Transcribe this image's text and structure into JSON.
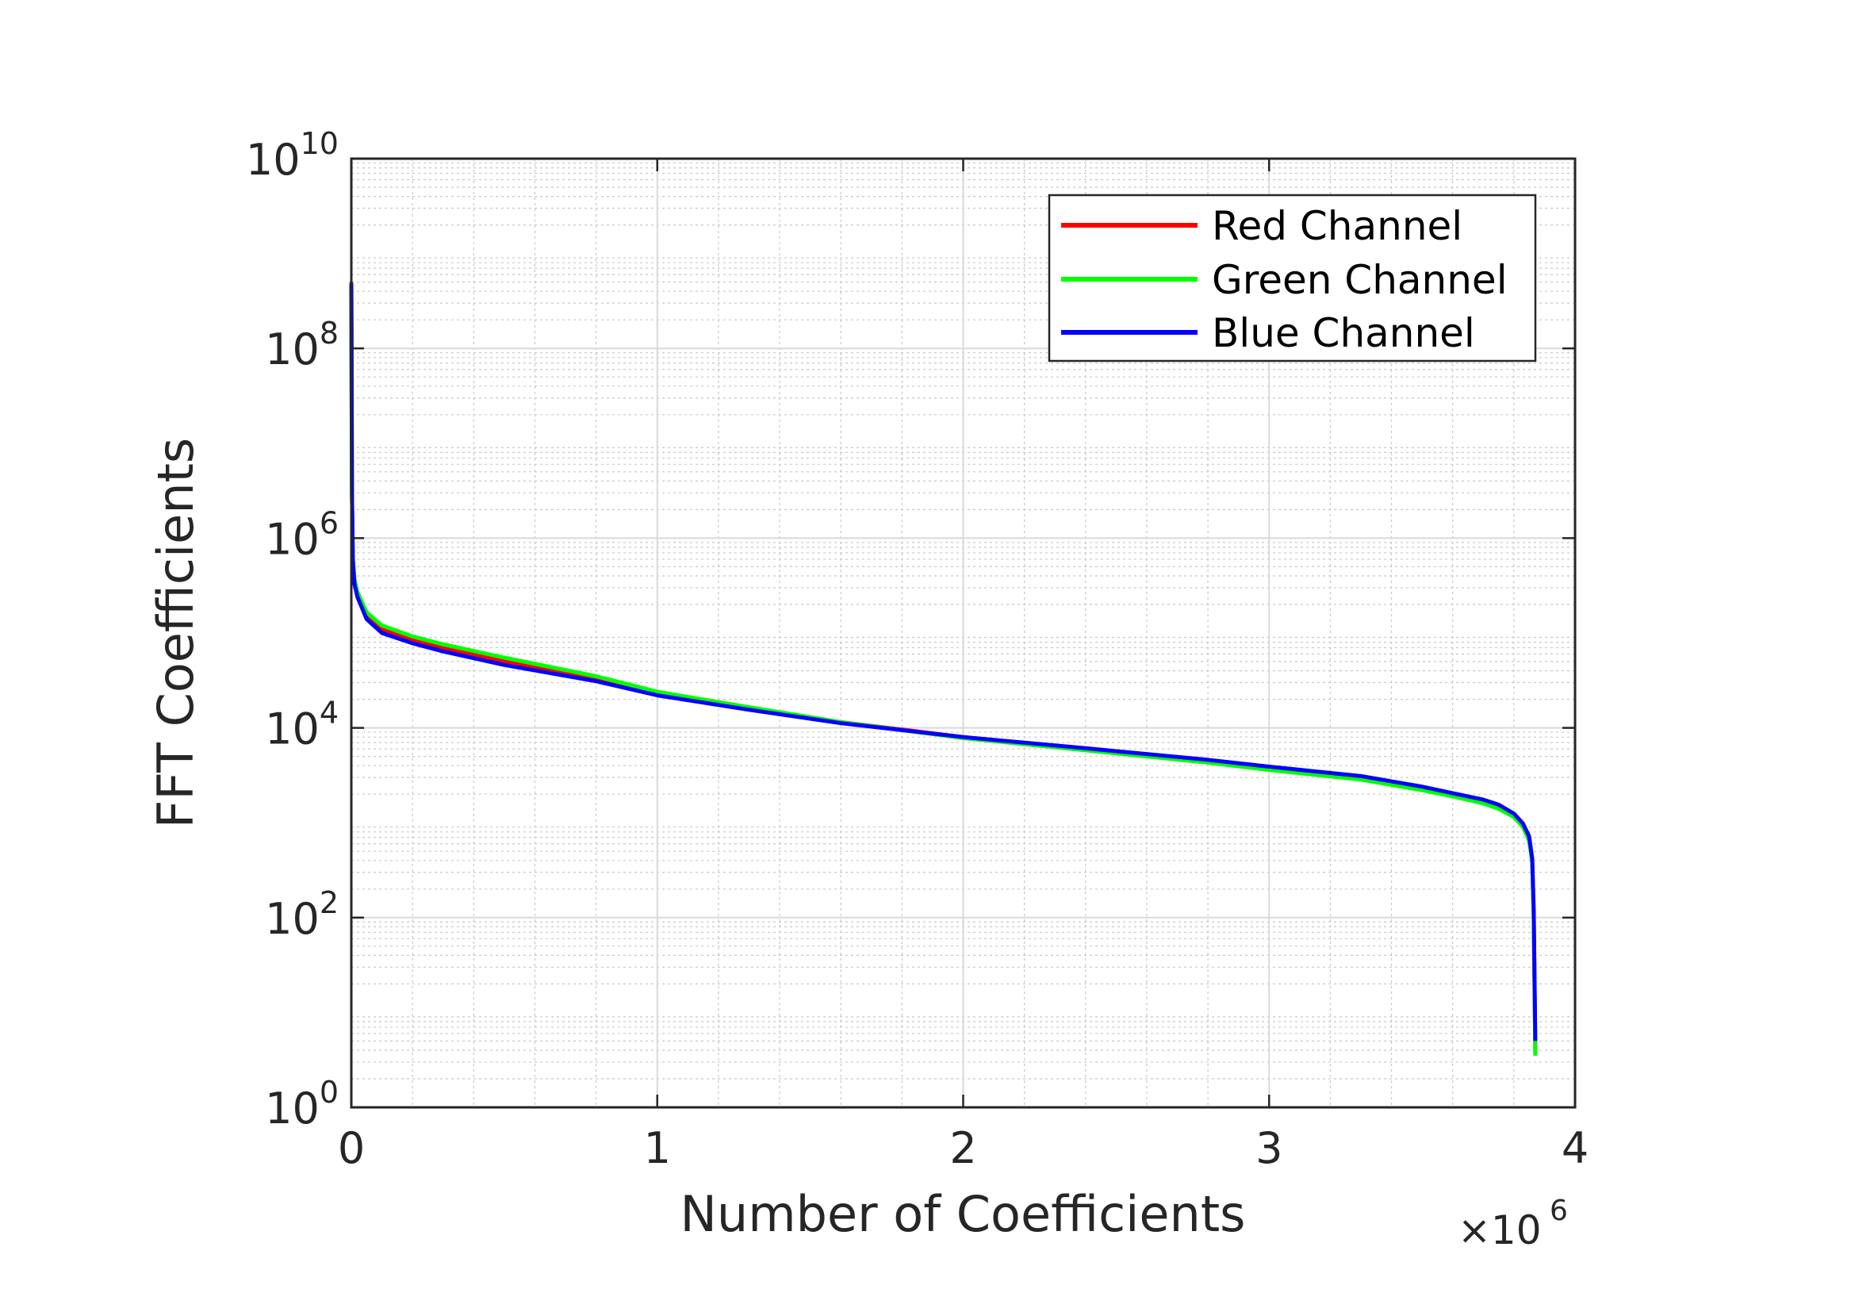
{
  "chart_data": {
    "type": "line",
    "xlabel": "Number of Coefficients",
    "ylabel": "FFT Coefficients",
    "x_multiplier": {
      "base": "×10",
      "exponent": "6"
    },
    "xlim": [
      0,
      4
    ],
    "ylim": [
      1,
      10000000000
    ],
    "yscale": "log",
    "grid": true,
    "minor_grid": true,
    "legend_position": "top-right",
    "x_ticks": [
      "0",
      "1",
      "2",
      "3",
      "4"
    ],
    "y_ticks": [
      {
        "base": "10",
        "exp": "0",
        "value": 1
      },
      {
        "base": "10",
        "exp": "2",
        "value": 100
      },
      {
        "base": "10",
        "exp": "4",
        "value": 10000
      },
      {
        "base": "10",
        "exp": "6",
        "value": 1000000
      },
      {
        "base": "10",
        "exp": "8",
        "value": 100000000
      },
      {
        "base": "10",
        "exp": "10",
        "value": 10000000000
      }
    ],
    "series": [
      {
        "name": "Red Channel",
        "color": "#ff0000",
        "x": [
          0,
          0.002,
          0.005,
          0.01,
          0.02,
          0.05,
          0.1,
          0.2,
          0.3,
          0.5,
          0.8,
          1.0,
          1.3,
          1.6,
          2.0,
          2.4,
          2.8,
          3.0,
          3.3,
          3.5,
          3.6,
          3.7,
          3.75,
          3.8,
          3.83,
          3.85,
          3.86,
          3.865,
          3.87
        ],
        "y": [
          500000000,
          3000000,
          600000,
          350000,
          250000,
          150000,
          110000,
          85000,
          70000,
          50000,
          33000,
          23000,
          16000,
          11500,
          8000,
          6000,
          4500,
          3800,
          3000,
          2300,
          2000,
          1700,
          1500,
          1200,
          950,
          700,
          400,
          110,
          4
        ]
      },
      {
        "name": "Green Channel",
        "color": "#00ff00",
        "x": [
          0,
          0.002,
          0.005,
          0.01,
          0.02,
          0.05,
          0.1,
          0.2,
          0.3,
          0.5,
          0.8,
          1.0,
          1.3,
          1.6,
          2.0,
          2.4,
          2.8,
          3.0,
          3.3,
          3.5,
          3.6,
          3.7,
          3.75,
          3.8,
          3.83,
          3.85,
          3.86,
          3.865,
          3.87
        ],
        "y": [
          450000000,
          2800000,
          620000,
          370000,
          270000,
          165000,
          120000,
          92000,
          76000,
          55000,
          35000,
          24000,
          16500,
          11500,
          7800,
          5800,
          4300,
          3600,
          2850,
          2200,
          1900,
          1600,
          1400,
          1150,
          900,
          650,
          380,
          100,
          3.5
        ]
      },
      {
        "name": "Blue Channel",
        "color": "#0000ff",
        "x": [
          0,
          0.002,
          0.005,
          0.01,
          0.02,
          0.05,
          0.1,
          0.2,
          0.3,
          0.5,
          0.8,
          1.0,
          1.3,
          1.6,
          2.0,
          2.4,
          2.8,
          3.0,
          3.3,
          3.5,
          3.6,
          3.7,
          3.75,
          3.8,
          3.83,
          3.85,
          3.86,
          3.865,
          3.87
        ],
        "y": [
          480000000,
          2900000,
          580000,
          330000,
          240000,
          140000,
          100000,
          78000,
          64000,
          46000,
          31000,
          22000,
          15500,
          11200,
          8000,
          6100,
          4600,
          3900,
          3100,
          2400,
          2050,
          1750,
          1550,
          1250,
          980,
          720,
          420,
          120,
          5
        ]
      }
    ]
  }
}
